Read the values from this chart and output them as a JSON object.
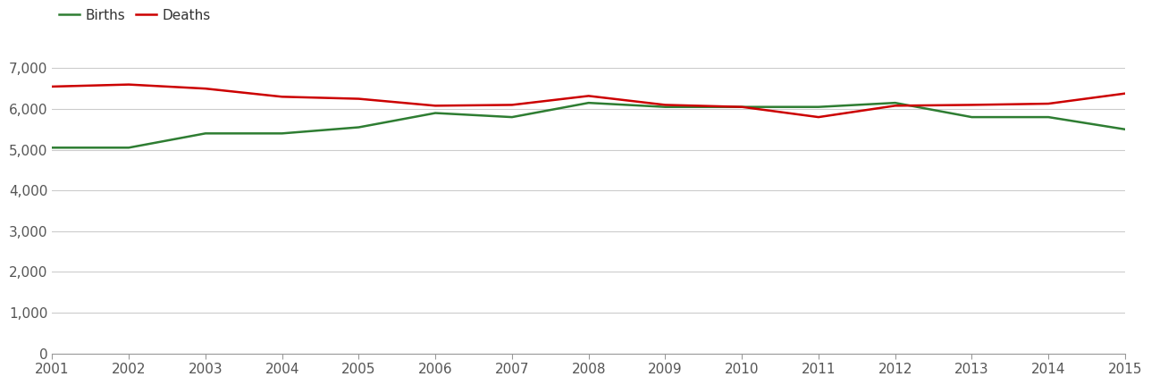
{
  "years": [
    2001,
    2002,
    2003,
    2004,
    2005,
    2006,
    2007,
    2008,
    2009,
    2010,
    2011,
    2012,
    2013,
    2014,
    2015
  ],
  "births": [
    5050,
    5050,
    5400,
    5400,
    5550,
    5900,
    5800,
    6150,
    6050,
    6050,
    6050,
    6150,
    5800,
    5800,
    5500
  ],
  "deaths": [
    6550,
    6600,
    6500,
    6300,
    6250,
    6080,
    6100,
    6320,
    6100,
    6050,
    5800,
    6080,
    6100,
    6130,
    6380
  ],
  "births_color": "#2e7d32",
  "deaths_color": "#cc0000",
  "background_color": "#ffffff",
  "grid_color": "#cccccc",
  "ylim": [
    0,
    7500
  ],
  "yticks": [
    0,
    1000,
    2000,
    3000,
    4000,
    5000,
    6000,
    7000
  ],
  "ytick_labels": [
    "0",
    "1,000",
    "2,000",
    "3,000",
    "4,000",
    "5,000",
    "6,000",
    "7,000"
  ],
  "legend_labels": [
    "Births",
    "Deaths"
  ],
  "line_width": 1.8,
  "tick_fontsize": 11,
  "legend_fontsize": 11
}
